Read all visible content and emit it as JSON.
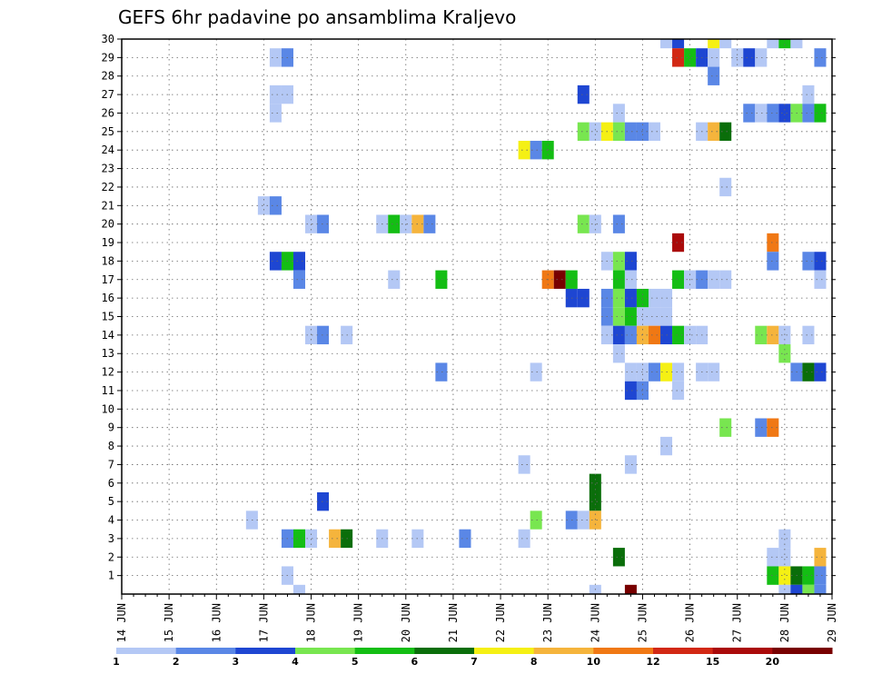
{
  "chart_data": {
    "type": "heatmap",
    "title": "GEFS 6hr padavine po ansamblima Kraljevo",
    "y_ticks": [
      "1",
      "2",
      "3",
      "4",
      "5",
      "6",
      "7",
      "8",
      "9",
      "10",
      "11",
      "12",
      "13",
      "14",
      "15",
      "16",
      "17",
      "18",
      "19",
      "20",
      "21",
      "22",
      "23",
      "24",
      "25",
      "26",
      "27",
      "28",
      "29",
      "30"
    ],
    "x_ticks": [
      "14 JUN",
      "15 JUN",
      "16 JUN",
      "17 JUN",
      "18 JUN",
      "19 JUN",
      "20 JUN",
      "21 JUN",
      "22 JUN",
      "23 JUN",
      "24 JUN",
      "25 JUN",
      "26 JUN",
      "27 JUN",
      "28 JUN",
      "29 JUN"
    ],
    "grid": true,
    "legend": {
      "position": "bottom",
      "labels": [
        "1",
        "2",
        "3",
        "4",
        "5",
        "6",
        "7",
        "8",
        "10",
        "12",
        "15",
        "20"
      ],
      "colors": [
        "#b4c8f5",
        "#5a87e6",
        "#1e46d2",
        "#78e650",
        "#14be14",
        "#0a6e0a",
        "#f5f014",
        "#f5b43c",
        "#f07814",
        "#d22814",
        "#aa0a0a",
        "#780000"
      ]
    },
    "cells": [
      {
        "m": 30,
        "t": "25 JUN 12",
        "c": 1
      },
      {
        "m": 30,
        "t": "25 JUN 18",
        "c": 3
      },
      {
        "m": 30,
        "t": "26 JUN 12",
        "c": 7
      },
      {
        "m": 30,
        "t": "26 JUN 18",
        "c": 1
      },
      {
        "m": 30,
        "t": "27 JUN 18",
        "c": 1
      },
      {
        "m": 30,
        "t": "28 JUN 00",
        "c": 5
      },
      {
        "m": 30,
        "t": "28 JUN 06",
        "c": 1
      },
      {
        "m": 29,
        "t": "17 JUN 06",
        "c": 1
      },
      {
        "m": 29,
        "t": "17 JUN 12",
        "c": 2
      },
      {
        "m": 29,
        "t": "25 JUN 18",
        "c": 12
      },
      {
        "m": 29,
        "t": "26 JUN 00",
        "c": 5
      },
      {
        "m": 29,
        "t": "26 JUN 06",
        "c": 3
      },
      {
        "m": 29,
        "t": "26 JUN 12",
        "c": 1
      },
      {
        "m": 29,
        "t": "27 JUN 00",
        "c": 1
      },
      {
        "m": 29,
        "t": "27 JUN 06",
        "c": 3
      },
      {
        "m": 29,
        "t": "27 JUN 12",
        "c": 1
      },
      {
        "m": 29,
        "t": "28 JUN 18",
        "c": 2
      },
      {
        "m": 28,
        "t": "26 JUN 12",
        "c": 2
      },
      {
        "m": 27,
        "t": "17 JUN 06",
        "c": 1
      },
      {
        "m": 27,
        "t": "17 JUN 12",
        "c": 1
      },
      {
        "m": 27,
        "t": "23 JUN 18",
        "c": 3
      },
      {
        "m": 27,
        "t": "28 JUN 12",
        "c": 1
      },
      {
        "m": 26,
        "t": "17 JUN 06",
        "c": 1
      },
      {
        "m": 26,
        "t": "24 JUN 12",
        "c": 1
      },
      {
        "m": 26,
        "t": "27 JUN 06",
        "c": 2
      },
      {
        "m": 26,
        "t": "27 JUN 12",
        "c": 1
      },
      {
        "m": 26,
        "t": "27 JUN 18",
        "c": 2
      },
      {
        "m": 26,
        "t": "28 JUN 00",
        "c": 3
      },
      {
        "m": 26,
        "t": "28 JUN 06",
        "c": 4
      },
      {
        "m": 26,
        "t": "28 JUN 12",
        "c": 2
      },
      {
        "m": 26,
        "t": "28 JUN 18",
        "c": 5
      },
      {
        "m": 25,
        "t": "23 JUN 18",
        "c": 4
      },
      {
        "m": 25,
        "t": "24 JUN 00",
        "c": 1
      },
      {
        "m": 25,
        "t": "24 JUN 06",
        "c": 7
      },
      {
        "m": 25,
        "t": "24 JUN 12",
        "c": 4
      },
      {
        "m": 25,
        "t": "24 JUN 18",
        "c": 2
      },
      {
        "m": 25,
        "t": "25 JUN 00",
        "c": 2
      },
      {
        "m": 25,
        "t": "25 JUN 06",
        "c": 1
      },
      {
        "m": 25,
        "t": "26 JUN 06",
        "c": 1
      },
      {
        "m": 25,
        "t": "26 JUN 12",
        "c": 8
      },
      {
        "m": 25,
        "t": "26 JUN 18",
        "c": 6
      },
      {
        "m": 24,
        "t": "22 JUN 12",
        "c": 7
      },
      {
        "m": 24,
        "t": "22 JUN 18",
        "c": 2
      },
      {
        "m": 24,
        "t": "23 JUN 00",
        "c": 5
      },
      {
        "m": 22,
        "t": "26 JUN 18",
        "c": 1
      },
      {
        "m": 21,
        "t": "17 JUN 00",
        "c": 1
      },
      {
        "m": 21,
        "t": "17 JUN 06",
        "c": 2
      },
      {
        "m": 20,
        "t": "18 JUN 00",
        "c": 1
      },
      {
        "m": 20,
        "t": "18 JUN 06",
        "c": 2
      },
      {
        "m": 20,
        "t": "19 JUN 12",
        "c": 1
      },
      {
        "m": 20,
        "t": "19 JUN 18",
        "c": 5
      },
      {
        "m": 20,
        "t": "20 JUN 00",
        "c": 1
      },
      {
        "m": 20,
        "t": "20 JUN 06",
        "c": 8
      },
      {
        "m": 20,
        "t": "20 JUN 12",
        "c": 2
      },
      {
        "m": 20,
        "t": "23 JUN 18",
        "c": 4
      },
      {
        "m": 20,
        "t": "24 JUN 00",
        "c": 1
      },
      {
        "m": 20,
        "t": "24 JUN 12",
        "c": 2
      },
      {
        "m": 19,
        "t": "25 JUN 18",
        "c": 15
      },
      {
        "m": 19,
        "t": "27 JUN 18",
        "c": 10
      },
      {
        "m": 18,
        "t": "17 JUN 06",
        "c": 3
      },
      {
        "m": 18,
        "t": "17 JUN 12",
        "c": 5
      },
      {
        "m": 18,
        "t": "17 JUN 18",
        "c": 3
      },
      {
        "m": 18,
        "t": "24 JUN 06",
        "c": 1
      },
      {
        "m": 18,
        "t": "24 JUN 12",
        "c": 4
      },
      {
        "m": 18,
        "t": "24 JUN 18",
        "c": 3
      },
      {
        "m": 18,
        "t": "27 JUN 18",
        "c": 2
      },
      {
        "m": 18,
        "t": "28 JUN 12",
        "c": 2
      },
      {
        "m": 18,
        "t": "28 JUN 18",
        "c": 3
      },
      {
        "m": 17,
        "t": "17 JUN 18",
        "c": 2
      },
      {
        "m": 17,
        "t": "19 JUN 18",
        "c": 1
      },
      {
        "m": 17,
        "t": "20 JUN 18",
        "c": 5
      },
      {
        "m": 17,
        "t": "23 JUN 00",
        "c": 10
      },
      {
        "m": 17,
        "t": "23 JUN 06",
        "c": 20
      },
      {
        "m": 17,
        "t": "23 JUN 12",
        "c": 5
      },
      {
        "m": 17,
        "t": "24 JUN 12",
        "c": 5
      },
      {
        "m": 17,
        "t": "24 JUN 18",
        "c": 1
      },
      {
        "m": 17,
        "t": "25 JUN 18",
        "c": 5
      },
      {
        "m": 17,
        "t": "26 JUN 00",
        "c": 1
      },
      {
        "m": 17,
        "t": "26 JUN 06",
        "c": 2
      },
      {
        "m": 17,
        "t": "26 JUN 12",
        "c": 1
      },
      {
        "m": 17,
        "t": "26 JUN 18",
        "c": 1
      },
      {
        "m": 17,
        "t": "28 JUN 18",
        "c": 1
      },
      {
        "m": 16,
        "t": "23 JUN 12",
        "c": 3
      },
      {
        "m": 16,
        "t": "23 JUN 18",
        "c": 3
      },
      {
        "m": 16,
        "t": "24 JUN 06",
        "c": 2
      },
      {
        "m": 16,
        "t": "24 JUN 12",
        "c": 4
      },
      {
        "m": 16,
        "t": "24 JUN 18",
        "c": 3
      },
      {
        "m": 16,
        "t": "25 JUN 00",
        "c": 5
      },
      {
        "m": 16,
        "t": "25 JUN 06",
        "c": 1
      },
      {
        "m": 16,
        "t": "25 JUN 12",
        "c": 1
      },
      {
        "m": 15,
        "t": "24 JUN 06",
        "c": 2
      },
      {
        "m": 15,
        "t": "24 JUN 12",
        "c": 4
      },
      {
        "m": 15,
        "t": "24 JUN 18",
        "c": 5
      },
      {
        "m": 15,
        "t": "25 JUN 00",
        "c": 1
      },
      {
        "m": 15,
        "t": "25 JUN 06",
        "c": 1
      },
      {
        "m": 15,
        "t": "25 JUN 12",
        "c": 1
      },
      {
        "m": 14,
        "t": "18 JUN 00",
        "c": 1
      },
      {
        "m": 14,
        "t": "18 JUN 06",
        "c": 2
      },
      {
        "m": 14,
        "t": "18 JUN 18",
        "c": 1
      },
      {
        "m": 14,
        "t": "24 JUN 06",
        "c": 1
      },
      {
        "m": 14,
        "t": "24 JUN 12",
        "c": 3
      },
      {
        "m": 14,
        "t": "24 JUN 18",
        "c": 2
      },
      {
        "m": 14,
        "t": "25 JUN 00",
        "c": 8
      },
      {
        "m": 14,
        "t": "25 JUN 06",
        "c": 10
      },
      {
        "m": 14,
        "t": "25 JUN 12",
        "c": 3
      },
      {
        "m": 14,
        "t": "25 JUN 18",
        "c": 5
      },
      {
        "m": 14,
        "t": "26 JUN 00",
        "c": 1
      },
      {
        "m": 14,
        "t": "26 JUN 06",
        "c": 1
      },
      {
        "m": 14,
        "t": "27 JUN 12",
        "c": 4
      },
      {
        "m": 14,
        "t": "27 JUN 18",
        "c": 8
      },
      {
        "m": 14,
        "t": "28 JUN 00",
        "c": 1
      },
      {
        "m": 14,
        "t": "28 JUN 12",
        "c": 1
      },
      {
        "m": 13,
        "t": "24 JUN 12",
        "c": 1
      },
      {
        "m": 13,
        "t": "28 JUN 00",
        "c": 4
      },
      {
        "m": 12,
        "t": "20 JUN 18",
        "c": 2
      },
      {
        "m": 12,
        "t": "22 JUN 18",
        "c": 1
      },
      {
        "m": 12,
        "t": "24 JUN 18",
        "c": 1
      },
      {
        "m": 12,
        "t": "25 JUN 00",
        "c": 1
      },
      {
        "m": 12,
        "t": "25 JUN 06",
        "c": 2
      },
      {
        "m": 12,
        "t": "25 JUN 12",
        "c": 7
      },
      {
        "m": 12,
        "t": "25 JUN 18",
        "c": 1
      },
      {
        "m": 12,
        "t": "26 JUN 06",
        "c": 1
      },
      {
        "m": 12,
        "t": "26 JUN 12",
        "c": 1
      },
      {
        "m": 12,
        "t": "28 JUN 06",
        "c": 2
      },
      {
        "m": 12,
        "t": "28 JUN 12",
        "c": 6
      },
      {
        "m": 12,
        "t": "28 JUN 18",
        "c": 3
      },
      {
        "m": 11,
        "t": "24 JUN 18",
        "c": 3
      },
      {
        "m": 11,
        "t": "25 JUN 00",
        "c": 2
      },
      {
        "m": 11,
        "t": "25 JUN 18",
        "c": 1
      },
      {
        "m": 9,
        "t": "26 JUN 18",
        "c": 4
      },
      {
        "m": 9,
        "t": "27 JUN 12",
        "c": 2
      },
      {
        "m": 9,
        "t": "27 JUN 18",
        "c": 10
      },
      {
        "m": 8,
        "t": "25 JUN 12",
        "c": 1
      },
      {
        "m": 7,
        "t": "22 JUN 12",
        "c": 1
      },
      {
        "m": 7,
        "t": "24 JUN 18",
        "c": 1
      },
      {
        "m": 6,
        "t": "24 JUN 00",
        "c": 6
      },
      {
        "m": 5,
        "t": "18 JUN 06",
        "c": 3
      },
      {
        "m": 5,
        "t": "24 JUN 00",
        "c": 6
      },
      {
        "m": 4,
        "t": "16 JUN 18",
        "c": 1
      },
      {
        "m": 4,
        "t": "22 JUN 18",
        "c": 4
      },
      {
        "m": 4,
        "t": "23 JUN 12",
        "c": 2
      },
      {
        "m": 4,
        "t": "23 JUN 18",
        "c": 1
      },
      {
        "m": 4,
        "t": "24 JUN 00",
        "c": 8
      },
      {
        "m": 3,
        "t": "17 JUN 12",
        "c": 2
      },
      {
        "m": 3,
        "t": "17 JUN 18",
        "c": 5
      },
      {
        "m": 3,
        "t": "18 JUN 00",
        "c": 1
      },
      {
        "m": 3,
        "t": "18 JUN 12",
        "c": 8
      },
      {
        "m": 3,
        "t": "18 JUN 18",
        "c": 6
      },
      {
        "m": 3,
        "t": "19 JUN 12",
        "c": 1
      },
      {
        "m": 3,
        "t": "20 JUN 06",
        "c": 1
      },
      {
        "m": 3,
        "t": "21 JUN 06",
        "c": 2
      },
      {
        "m": 3,
        "t": "22 JUN 12",
        "c": 1
      },
      {
        "m": 3,
        "t": "28 JUN 00",
        "c": 1
      },
      {
        "m": 2,
        "t": "24 JUN 12",
        "c": 6
      },
      {
        "m": 2,
        "t": "27 JUN 18",
        "c": 1
      },
      {
        "m": 2,
        "t": "28 JUN 00",
        "c": 1
      },
      {
        "m": 2,
        "t": "28 JUN 18",
        "c": 8
      },
      {
        "m": 1,
        "t": "17 JUN 12",
        "c": 1
      },
      {
        "m": 1,
        "t": "27 JUN 18",
        "c": 5
      },
      {
        "m": 1,
        "t": "28 JUN 00",
        "c": 7
      },
      {
        "m": 1,
        "t": "28 JUN 06",
        "c": 6
      },
      {
        "m": 1,
        "t": "28 JUN 12",
        "c": 5
      },
      {
        "m": 1,
        "t": "28 JUN 18",
        "c": 2
      },
      {
        "m": 0,
        "t": "17 JUN 18",
        "c": 1
      },
      {
        "m": 0,
        "t": "24 JUN 00",
        "c": 1
      },
      {
        "m": 0,
        "t": "24 JUN 18",
        "c": 20
      },
      {
        "m": 0,
        "t": "28 JUN 00",
        "c": 1
      },
      {
        "m": 0,
        "t": "28 JUN 06",
        "c": 3
      },
      {
        "m": 0,
        "t": "28 JUN 12",
        "c": 4
      },
      {
        "m": 0,
        "t": "28 JUN 18",
        "c": 2
      }
    ]
  }
}
